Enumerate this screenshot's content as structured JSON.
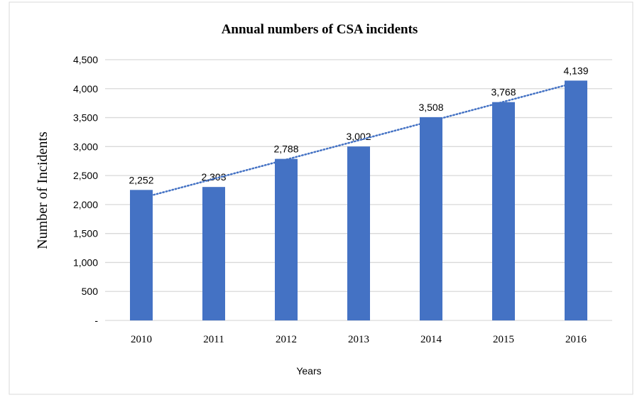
{
  "chart_data": {
    "type": "bar",
    "title": "Annual numbers of CSA incidents",
    "xlabel": "Years",
    "ylabel": "Number of Incidents",
    "categories": [
      "2010",
      "2011",
      "2012",
      "2013",
      "2014",
      "2015",
      "2016"
    ],
    "values": [
      2252,
      2303,
      2788,
      3002,
      3508,
      3768,
      4139
    ],
    "data_labels": [
      "2,252",
      "2,303",
      "2,788",
      "3,002",
      "3,508",
      "3,768",
      "4,139"
    ],
    "ylim": [
      0,
      4500
    ],
    "yticks": [
      0,
      500,
      1000,
      1500,
      2000,
      2500,
      3000,
      3500,
      4000,
      4500
    ],
    "ytick_labels": [
      "-",
      "500",
      "1,000",
      "1,500",
      "2,000",
      "2,500",
      "3,000",
      "3,500",
      "4,000",
      "4,500"
    ],
    "grid": true,
    "trendline": "linear, dotted",
    "colors": {
      "bar": "#4472C4",
      "trendline": "#4472C4",
      "grid": "#D9D9D9"
    }
  }
}
